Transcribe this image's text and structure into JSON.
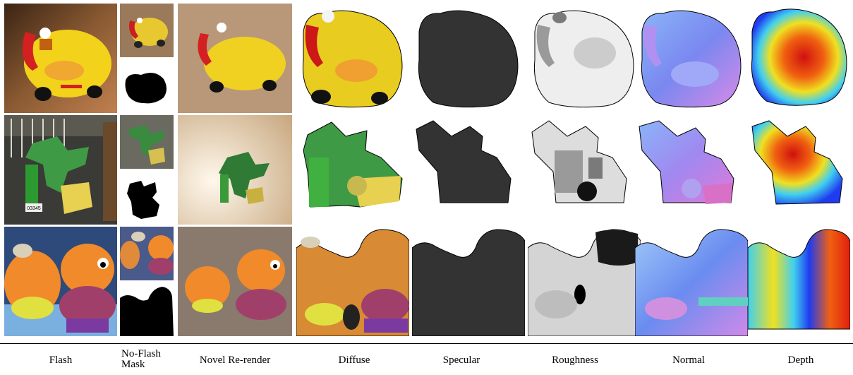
{
  "figure": {
    "columns": [
      {
        "key": "flash",
        "label": "Flash"
      },
      {
        "key": "no_flash_mask",
        "label": "No-Flash Mask"
      },
      {
        "key": "novel_rerender",
        "label": "Novel Re-render"
      },
      {
        "key": "diffuse",
        "label": "Diffuse"
      },
      {
        "key": "specular",
        "label": "Specular"
      },
      {
        "key": "roughness",
        "label": "Roughness"
      },
      {
        "key": "normal",
        "label": "Normal"
      },
      {
        "key": "depth",
        "label": "Depth"
      }
    ],
    "rows": [
      {
        "object": "yellow toy car",
        "photo_bg": "#8a5a32",
        "body_color": "#f2d21a"
      },
      {
        "object": "green toy",
        "photo_bg": "#3a3a36",
        "body_color": "#3f9a45"
      },
      {
        "object": "orange toy pair",
        "photo_bg": "#2d4a7a",
        "body_color": "#f08a2a"
      }
    ],
    "row2_sticker_text": "03345",
    "colors": {
      "specular": "#333333",
      "roughness_light": "#eeeeee",
      "roughness_dark": "#7a7a7a",
      "normal_blue": "#6a8cf0",
      "normal_pink": "#d88ae8",
      "depth_blue": "#1f3cf0",
      "depth_red": "#e02010",
      "depth_yellow": "#f0e020"
    }
  }
}
